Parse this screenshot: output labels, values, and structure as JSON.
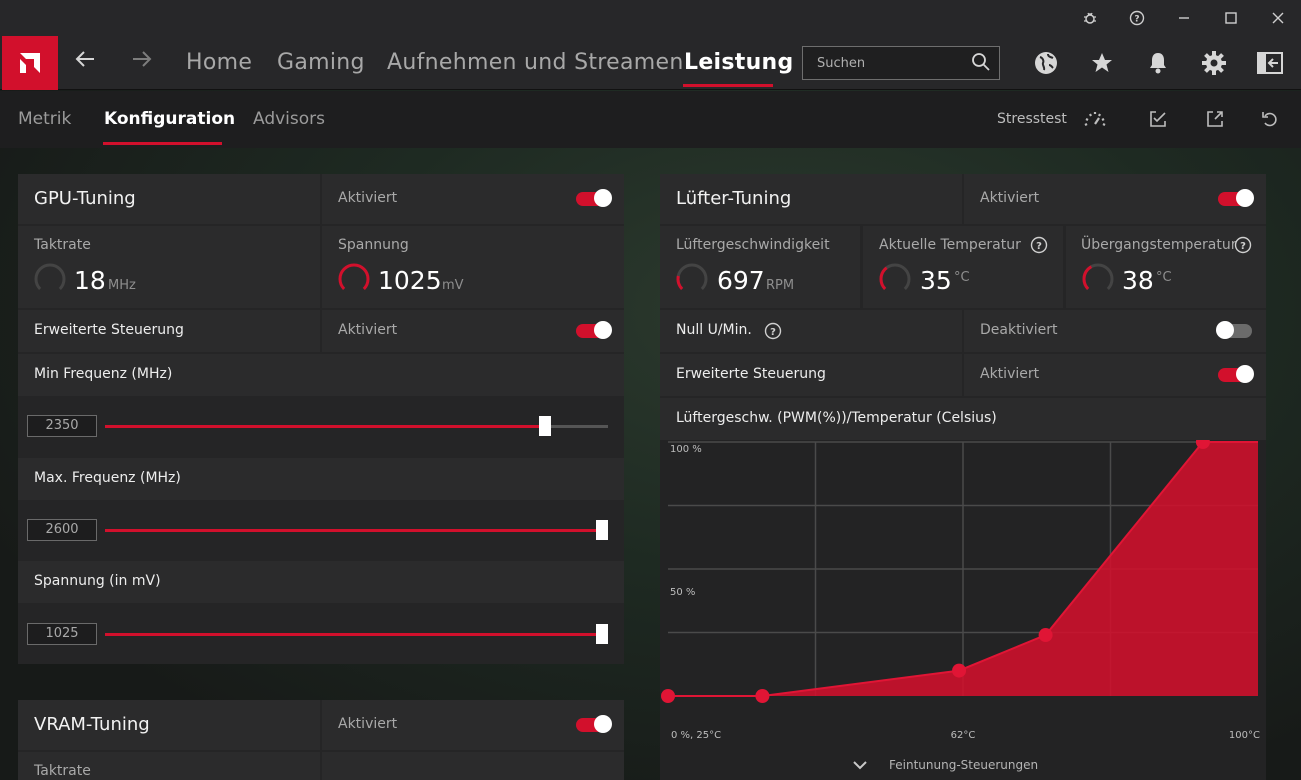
{
  "window": {
    "icons": [
      "bug-icon",
      "help-icon",
      "minimize-icon",
      "maximize-icon",
      "close-icon"
    ]
  },
  "nav": {
    "home": "Home",
    "gaming": "Gaming",
    "streaming": "Aufnehmen und Streamen",
    "performance": "Leistung",
    "search_placeholder": "Suchen"
  },
  "subnav": {
    "metrics": "Metrik",
    "config": "Konfiguration",
    "advisors": "Advisors",
    "stresstest": "Stresstest"
  },
  "gpu": {
    "title": "GPU-Tuning",
    "state": "Aktiviert",
    "clock_label": "Taktrate",
    "clock_value": "18",
    "clock_unit": "MHz",
    "voltage_label": "Spannung",
    "voltage_value": "1025",
    "voltage_unit": "mV",
    "advanced_label": "Erweiterte Steuerung",
    "advanced_state": "Aktiviert",
    "min_freq_label": "Min Frequenz (MHz)",
    "min_freq_value": "2350",
    "min_freq_fraction": 0.875,
    "max_freq_label": "Max. Frequenz (MHz)",
    "max_freq_value": "2600",
    "max_freq_fraction": 0.99,
    "volt_label": "Spannung (in mV)",
    "volt_value": "1025",
    "volt_fraction": 0.99
  },
  "vram": {
    "title": "VRAM-Tuning",
    "state": "Aktiviert",
    "clock_label": "Taktrate"
  },
  "fan": {
    "title": "Lüfter-Tuning",
    "state": "Aktiviert",
    "speed_label": "Lüftergeschwindigkeit",
    "speed_value": "697",
    "speed_unit": "RPM",
    "temp_label": "Aktuelle Temperatur",
    "temp_value": "35",
    "temp_unit": "°C",
    "junction_label": "Übergangstemperatur",
    "junction_value": "38",
    "junction_unit": "°C",
    "zero_rpm_label": "Null U/Min.",
    "zero_rpm_state": "Deaktiviert",
    "advanced_label": "Erweiterte Steuerung",
    "advanced_state": "Aktiviert",
    "curve_title": "Lüftergeschw. (PWM(%))/Temperatur (Celsius)",
    "fine_tuning": "Feintunung-Steuerungen"
  },
  "chart_data": {
    "type": "area",
    "x": [
      25,
      37,
      62,
      73,
      93
    ],
    "y": [
      0,
      0,
      10,
      24,
      100
    ],
    "xlim": [
      25,
      100
    ],
    "ylim": [
      0,
      100
    ],
    "y_ticks": [
      "100 %",
      "50 %"
    ],
    "x_ticks": [
      "0 %, 25°C",
      "62°C",
      "100°C"
    ],
    "grid": true,
    "color": "#d2102c"
  },
  "colors": {
    "accent": "#d2102c"
  }
}
